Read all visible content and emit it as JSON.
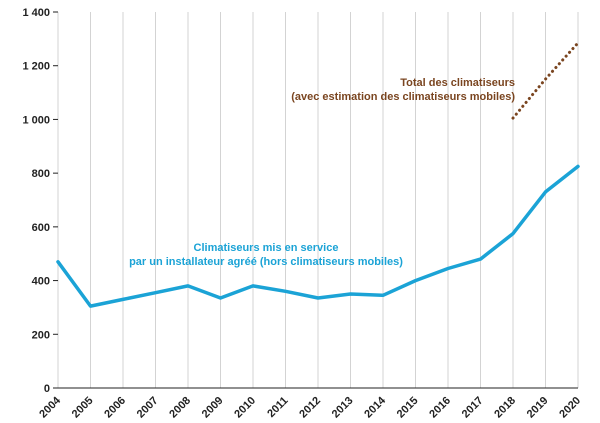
{
  "chart_data": {
    "type": "line",
    "title": "",
    "xlabel": "",
    "ylabel": "",
    "x": [
      "2004",
      "2005",
      "2006",
      "2007",
      "2008",
      "2009",
      "2010",
      "2011",
      "2012",
      "2013",
      "2014",
      "2015",
      "2016",
      "2017",
      "2018",
      "2019",
      "2020"
    ],
    "ylim": [
      0,
      1400
    ],
    "yticks": [
      0,
      200,
      400,
      600,
      800,
      1000,
      1200,
      1400
    ],
    "ytick_labels": [
      "0",
      "200",
      "400",
      "600",
      "800",
      "1 000",
      "1 200",
      "1 400"
    ],
    "grid": "vertical",
    "series": [
      {
        "values": [
          470,
          305,
          330,
          355,
          380,
          335,
          380,
          360,
          335,
          350,
          345,
          400,
          445,
          480,
          575,
          730,
          825
        ],
        "color": "#1ba3d6",
        "style": "solid"
      },
      {
        "values": [
          null,
          null,
          null,
          null,
          null,
          null,
          null,
          null,
          null,
          null,
          null,
          null,
          null,
          null,
          1005,
          1150,
          1285
        ],
        "color": "#7a4520",
        "style": "dotted"
      }
    ],
    "annotations": [
      {
        "lines": [
          "Climatiseurs mis en service",
          "par un installateur agréé (hors climatiseurs mobiles)"
        ],
        "color": "#1ba3d6"
      },
      {
        "lines": [
          "Total des climatiseurs",
          "(avec estimation des climatiseurs mobiles)"
        ],
        "color": "#7a4520"
      }
    ]
  }
}
